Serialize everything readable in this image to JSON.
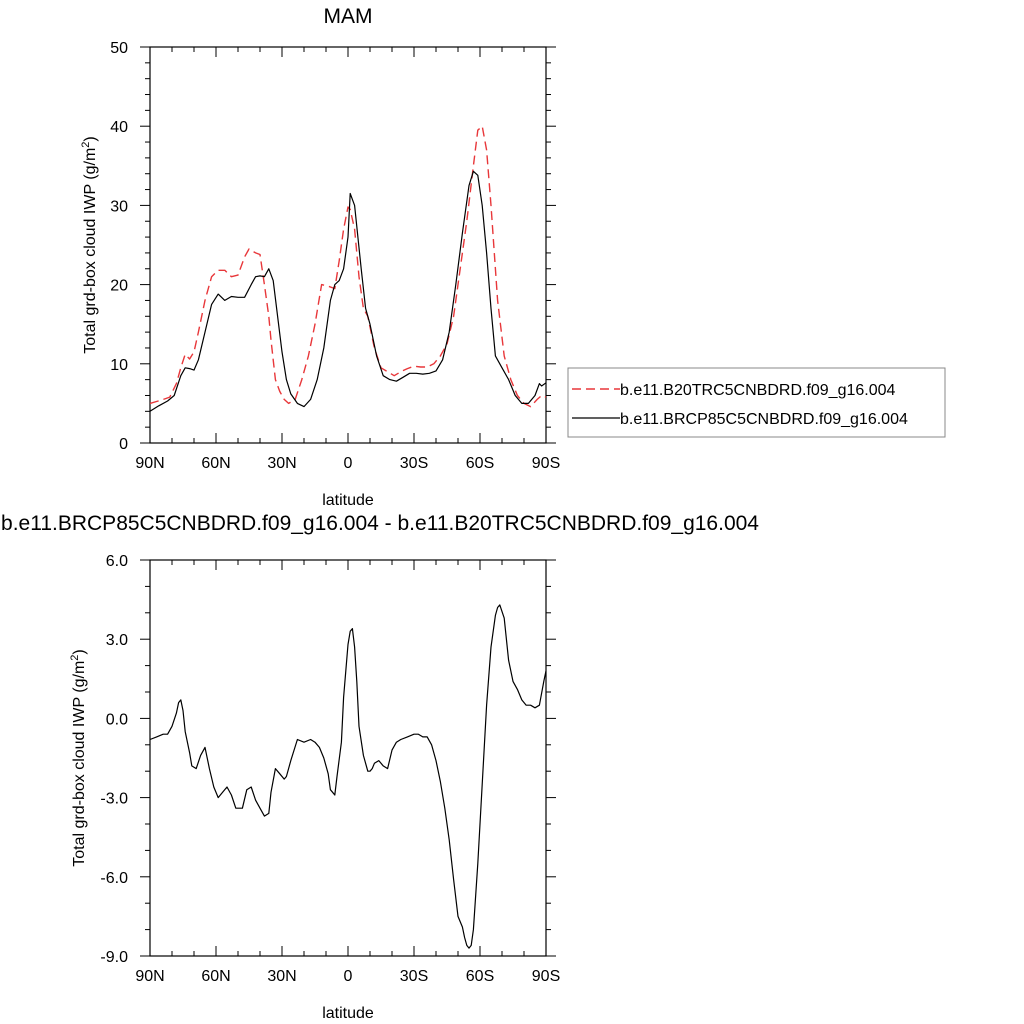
{
  "chart_data": [
    {
      "type": "line",
      "title": "MAM",
      "xlabel": "latitude",
      "ylabel": "Total grd-box cloud IWP (g/m",
      "ylabel_sup": "2",
      "ylabel_close": ")",
      "xlim": [
        90,
        -90
      ],
      "ylim": [
        0,
        50
      ],
      "x_ticks": [
        90,
        60,
        30,
        0,
        -30,
        -60,
        -90
      ],
      "x_tick_labels": [
        "90N",
        "60N",
        "30N",
        "0",
        "30S",
        "60S",
        "90S"
      ],
      "y_ticks": [
        0,
        10,
        20,
        30,
        40,
        50
      ],
      "y_tick_labels": [
        "0",
        "10",
        "20",
        "30",
        "40",
        "50"
      ],
      "grid": false,
      "legend_position": "right",
      "series": [
        {
          "name": "b.e11.B20TRC5CNBDRD.f09_g16.004",
          "color": "#e8373a",
          "dash": "dashed",
          "x": [
            90,
            85,
            81,
            78,
            76,
            74,
            72,
            70,
            68,
            65,
            62,
            59,
            56,
            53,
            50,
            47,
            45,
            42,
            40,
            38,
            36,
            35,
            33,
            31,
            29,
            27,
            24,
            21,
            18,
            15,
            12,
            9,
            6,
            4,
            2,
            0,
            -1,
            -3,
            -5,
            -7,
            -9,
            -12,
            -15,
            -18,
            -21,
            -24,
            -27,
            -30,
            -33,
            -36,
            -39,
            -42,
            -45,
            -48,
            -51,
            -54,
            -57,
            -59,
            -61,
            -63,
            -65,
            -68,
            -71,
            -74,
            -77,
            -80,
            -83,
            -86,
            -88,
            -90
          ],
          "y": [
            5,
            5.4,
            5.8,
            7.5,
            9.5,
            11.2,
            10.6,
            11.5,
            14,
            18,
            21,
            21.8,
            21.8,
            21,
            21.2,
            23.5,
            24.5,
            24,
            23.8,
            20,
            16,
            13,
            8,
            6.5,
            5.5,
            5,
            5.5,
            8,
            11,
            15,
            20,
            19.8,
            19.5,
            23,
            27,
            29.8,
            29.5,
            27,
            21,
            17,
            16,
            12,
            9.5,
            9,
            8.5,
            9,
            9.4,
            9.7,
            9.6,
            9.6,
            10,
            11,
            12.5,
            16,
            22,
            28,
            35,
            39.5,
            40,
            37,
            30,
            18,
            11,
            8,
            6,
            5,
            4.6,
            5.5,
            6,
            5.8
          ]
        },
        {
          "name": "b.e11.BRCP85C5CNBDRD.f09_g16.004",
          "color": "#000000",
          "dash": "solid",
          "x": [
            90,
            86,
            82,
            79,
            76,
            74,
            72,
            70,
            68,
            65,
            62,
            59,
            56,
            53,
            50,
            47,
            44,
            42,
            40,
            38,
            36,
            34,
            32,
            30,
            28,
            26,
            23,
            20,
            17,
            14,
            11,
            8,
            6,
            4,
            2,
            0,
            -1,
            -3,
            -6,
            -8,
            -10,
            -13,
            -16,
            -19,
            -22,
            -25,
            -28,
            -31,
            -34,
            -37,
            -40,
            -43,
            -46,
            -49,
            -52,
            -55,
            -57,
            -59,
            -61,
            -63,
            -65,
            -67,
            -70,
            -73,
            -76,
            -79,
            -82,
            -85,
            -87,
            -88,
            -90
          ],
          "y": [
            4,
            4.7,
            5.3,
            6,
            8.5,
            9.5,
            9.4,
            9.2,
            10.5,
            14,
            17.5,
            18.8,
            18,
            18.5,
            18.4,
            18.4,
            20,
            21,
            21.1,
            21,
            22,
            20.5,
            16,
            11.5,
            8,
            6.2,
            5,
            4.6,
            5.5,
            8,
            12,
            18,
            20,
            20.5,
            22,
            26,
            31.5,
            30,
            22,
            17,
            15,
            11,
            8.5,
            8,
            7.8,
            8.3,
            8.8,
            8.8,
            8.7,
            8.8,
            9.1,
            10.5,
            14,
            20,
            26.5,
            32.5,
            34.3,
            33.8,
            30,
            24,
            17,
            11,
            9.5,
            8,
            6,
            5,
            5,
            6,
            7.5,
            7.2,
            7.6
          ]
        }
      ]
    },
    {
      "type": "line",
      "title": "b.e11.BRCP85C5CNBDRD.f09_g16.004 - b.e11.B20TRC5CNBDRD.f09_g16.004",
      "xlabel": "latitude",
      "ylabel": "Total grd-box cloud IWP (g/m",
      "ylabel_sup": "2",
      "ylabel_close": ")",
      "xlim": [
        90,
        -90
      ],
      "ylim": [
        -9,
        6
      ],
      "x_ticks": [
        90,
        60,
        30,
        0,
        -30,
        -60,
        -90
      ],
      "x_tick_labels": [
        "90N",
        "60N",
        "30N",
        "0",
        "30S",
        "60S",
        "90S"
      ],
      "y_ticks": [
        6,
        3,
        0,
        -3,
        -6,
        -9
      ],
      "y_tick_labels": [
        "6.0",
        "3.0",
        "0.0",
        "-3.0",
        "-6.0",
        "-9.0"
      ],
      "grid": false,
      "series": [
        {
          "color": "#000000",
          "dash": "solid",
          "x": [
            90,
            87,
            84,
            82,
            80,
            78,
            77,
            76,
            75,
            74,
            72,
            71,
            69,
            67,
            65,
            63,
            61,
            59,
            57,
            55,
            53,
            51,
            48,
            46,
            44,
            42,
            40,
            38,
            36,
            35,
            33,
            31,
            29,
            28,
            26,
            23,
            20,
            17,
            15,
            13,
            11,
            9,
            8,
            7,
            6,
            5,
            3,
            2,
            1,
            0,
            -1,
            -2,
            -3,
            -4,
            -5,
            -7,
            -8,
            -9,
            -10,
            -11,
            -12,
            -14,
            -16,
            -18,
            -20,
            -22,
            -24,
            -27,
            -30,
            -32,
            -34,
            -36,
            -38,
            -40,
            -42,
            -44,
            -46,
            -48,
            -50,
            -52,
            -53,
            -54,
            -55,
            -56,
            -57,
            -59,
            -61,
            -63,
            -65,
            -67,
            -68,
            -69,
            -71,
            -73,
            -75,
            -77,
            -79,
            -81,
            -83,
            -85,
            -87,
            -89,
            -90
          ],
          "y": [
            -0.8,
            -0.7,
            -0.6,
            -0.6,
            -0.3,
            0.2,
            0.6,
            0.7,
            0.3,
            -0.5,
            -1.3,
            -1.8,
            -1.9,
            -1.4,
            -1.1,
            -1.9,
            -2.6,
            -3,
            -2.8,
            -2.6,
            -2.9,
            -3.4,
            -3.4,
            -2.7,
            -2.6,
            -3.1,
            -3.4,
            -3.7,
            -3.6,
            -2.8,
            -1.9,
            -2.1,
            -2.3,
            -2.2,
            -1.6,
            -0.8,
            -0.9,
            -0.8,
            -0.9,
            -1.1,
            -1.5,
            -2.1,
            -2.7,
            -2.8,
            -2.9,
            -2.2,
            -0.9,
            0.8,
            1.8,
            2.8,
            3.3,
            3.4,
            2.7,
            1.4,
            -0.3,
            -1.4,
            -1.7,
            -2,
            -2,
            -1.9,
            -1.7,
            -1.6,
            -1.8,
            -1.9,
            -1.2,
            -0.9,
            -0.8,
            -0.7,
            -0.6,
            -0.6,
            -0.7,
            -0.7,
            -1,
            -1.6,
            -2.4,
            -3.4,
            -4.6,
            -6.1,
            -7.5,
            -7.9,
            -8.3,
            -8.6,
            -8.7,
            -8.6,
            -8,
            -5.5,
            -2.5,
            0.5,
            2.7,
            3.9,
            4.2,
            4.3,
            3.8,
            2.2,
            1.4,
            1.1,
            0.7,
            0.5,
            0.5,
            0.4,
            0.5,
            1.4,
            1.8
          ]
        }
      ]
    }
  ]
}
